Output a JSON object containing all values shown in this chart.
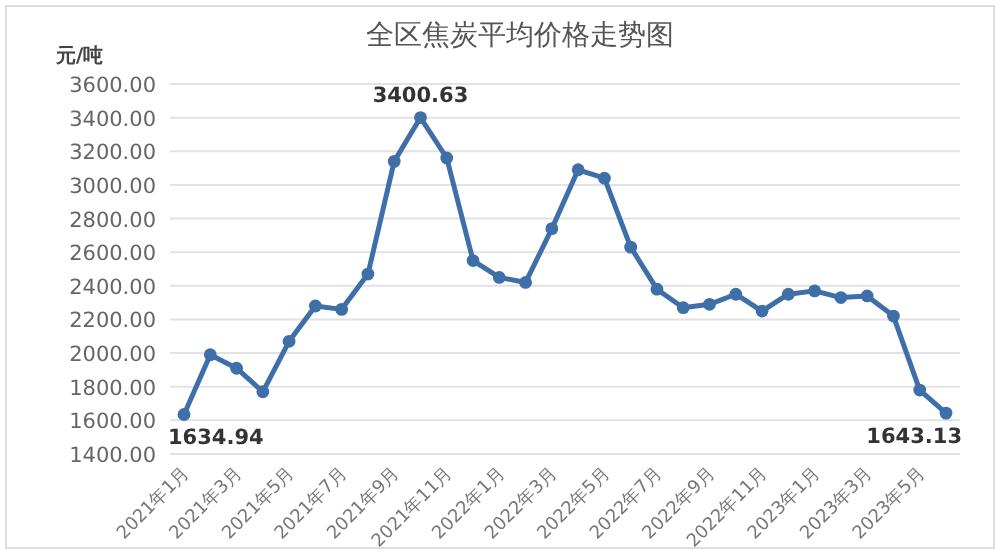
{
  "chart_data": {
    "type": "line",
    "title": "全区焦炭平均价格走势图",
    "ylabel": "元/吨",
    "categories": [
      "2021年1月",
      null,
      "2021年3月",
      null,
      "2021年5月",
      null,
      "2021年7月",
      null,
      "2021年9月",
      null,
      "2021年11月",
      null,
      "2022年1月",
      null,
      "2022年3月",
      null,
      "2022年5月",
      null,
      "2022年7月",
      null,
      "2022年9月",
      null,
      "2022年11月",
      null,
      "2023年1月",
      null,
      "2023年3月",
      null,
      "2023年5月",
      null
    ],
    "series": [
      {
        "color": "#3f6fa8",
        "values": [
          1634.94,
          1990,
          1910,
          1770,
          2070,
          2280,
          2260,
          2470,
          3140,
          3400.63,
          3160,
          2550,
          2450,
          2420,
          2740,
          3090,
          3040,
          2630,
          2380,
          2270,
          2290,
          2350,
          2250,
          2350,
          2370,
          2330,
          2340,
          2220,
          1780,
          1643.13
        ],
        "value_labels": [
          "1634.94",
          null,
          null,
          null,
          null,
          null,
          null,
          null,
          null,
          "3400.63",
          null,
          null,
          null,
          null,
          null,
          null,
          null,
          null,
          null,
          null,
          null,
          null,
          null,
          null,
          null,
          null,
          null,
          null,
          null,
          "1643.13"
        ]
      }
    ],
    "ylim": [
      1400,
      3600
    ],
    "yticks": [
      {
        "value": 1400,
        "label": "1400.00"
      },
      {
        "value": 1600,
        "label": "1600.00"
      },
      {
        "value": 1800,
        "label": "1800.00"
      },
      {
        "value": 2000,
        "label": "2000.00"
      },
      {
        "value": 2200,
        "label": "2200.00"
      },
      {
        "value": 2400,
        "label": "2400.00"
      },
      {
        "value": 2600,
        "label": "2600.00"
      },
      {
        "value": 2800,
        "label": "2800.00"
      },
      {
        "value": 3000,
        "label": "3000.00"
      },
      {
        "value": 3200,
        "label": "3200.00"
      },
      {
        "value": 3400,
        "label": "3400.00"
      },
      {
        "value": 3600,
        "label": "3600.00"
      }
    ],
    "grid": "y",
    "marker": "circle",
    "line_style": "solid"
  }
}
